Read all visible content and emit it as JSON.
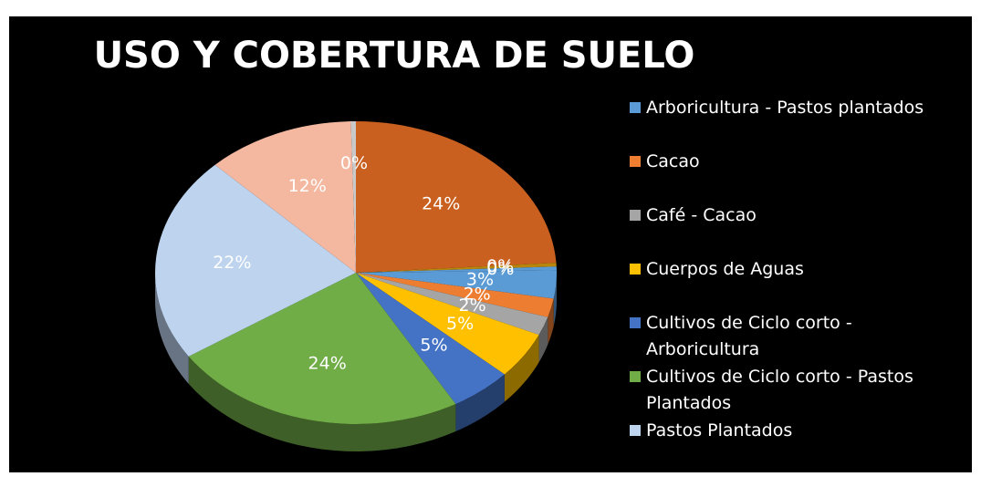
{
  "chart_data": {
    "type": "pie3d",
    "title": "USO Y COBERTURA DE SUELO",
    "categories": [
      null,
      null,
      null,
      "Arboricultura - Pastos plantados",
      "Cacao",
      "Café - Cacao",
      "Cuerpos de Aguas",
      "Cultivos de Ciclo corto - Arboricultura",
      "Cultivos de Ciclo corto - Pastos Plantados",
      "Pastos Plantados",
      null,
      null
    ],
    "values": [
      24,
      0.4,
      0.4,
      3,
      2,
      2,
      5,
      5,
      24,
      22,
      12,
      0.4
    ],
    "value_labels": [
      "24%",
      "0%",
      "0%",
      "3%",
      "2%",
      "2%",
      "5%",
      "5%",
      "24%",
      "22%",
      "12%",
      "0%"
    ],
    "colors": [
      "#c9601f",
      "#b8860b",
      "#5b9bd5",
      "#5b9bd5",
      "#ed7d31",
      "#a5a5a5",
      "#ffc000",
      "#4472c4",
      "#70ad47",
      "#bdd3ee",
      "#f4b8a0",
      "#c9c9c9"
    ],
    "legend": "right"
  }
}
